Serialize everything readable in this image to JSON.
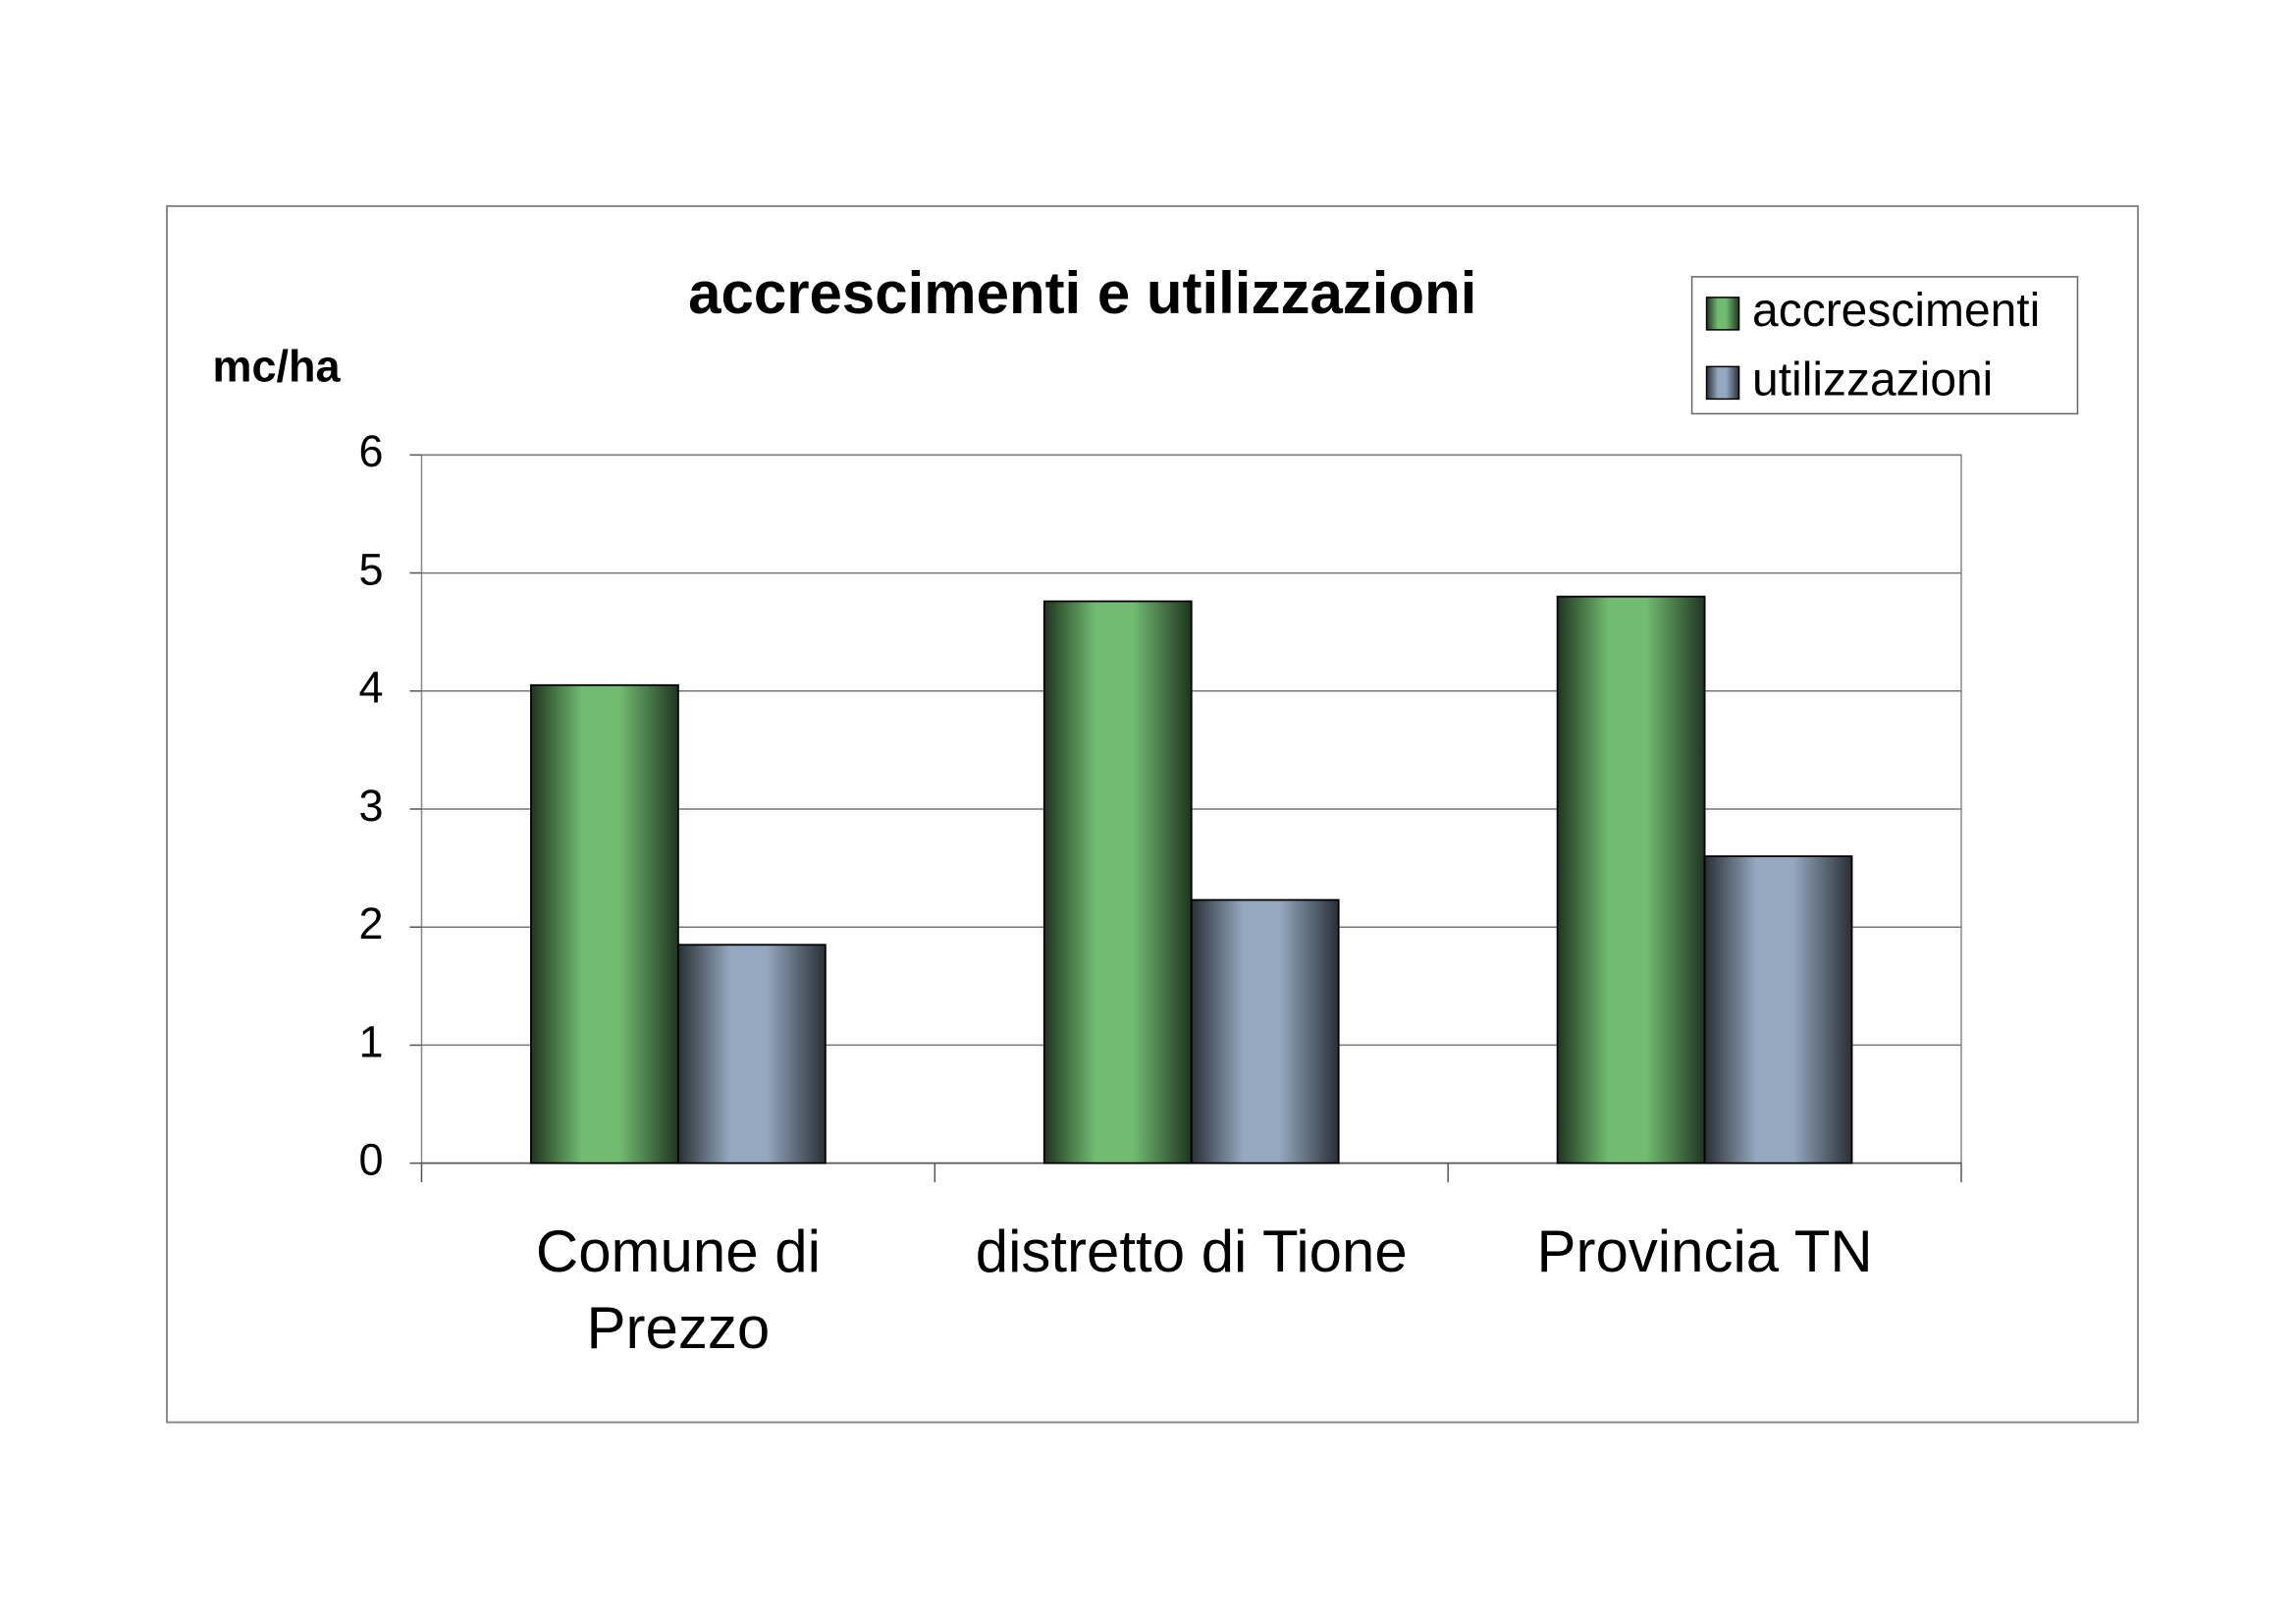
{
  "chart_data": {
    "type": "bar",
    "title": "accrescimenti e utilizzazioni",
    "y_label": "mc/ha",
    "categories": [
      "Comune di\nPrezzo",
      "distretto di Tione",
      "Provincia TN"
    ],
    "series": [
      {
        "name": "accrescimenti",
        "color": "#72bc72",
        "values": [
          4.05,
          4.76,
          4.8
        ]
      },
      {
        "name": "utilizzazioni",
        "color": "#94a8bf",
        "values": [
          1.85,
          2.23,
          2.6
        ]
      }
    ],
    "ylim": [
      0,
      6
    ],
    "yticks": [
      0,
      1,
      2,
      3,
      4,
      5,
      6
    ],
    "grid": true,
    "legend": "top-right"
  }
}
